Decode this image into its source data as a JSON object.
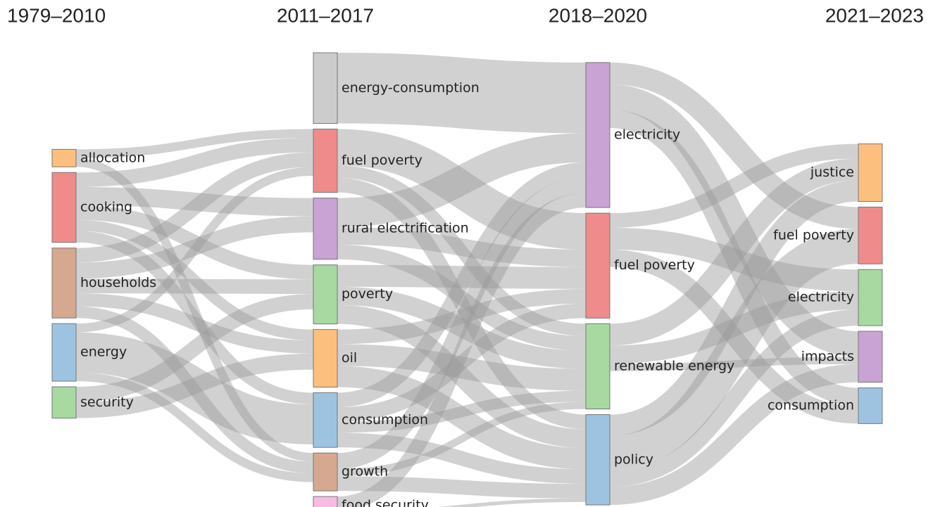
{
  "chart_data": {
    "type": "sankey",
    "columns": [
      "1979–2010",
      "2011–2017",
      "2018–2020",
      "2021–2023"
    ],
    "nodes": [
      {
        "name": "allocation",
        "column": 0,
        "color": "#fdbf7d"
      },
      {
        "name": "cooking",
        "column": 0,
        "color": "#f08b8b"
      },
      {
        "name": "households",
        "column": 0,
        "color": "#d6a890"
      },
      {
        "name": "energy",
        "column": 0,
        "color": "#9ec3e1"
      },
      {
        "name": "security",
        "column": 0,
        "color": "#a7d9a1"
      },
      {
        "name": "energy-consumption",
        "column": 1,
        "color": "#cccccc"
      },
      {
        "name": "fuel poverty",
        "column": 1,
        "color": "#f08b8b"
      },
      {
        "name": "rural electrification",
        "column": 1,
        "color": "#c9a3d4"
      },
      {
        "name": "poverty",
        "column": 1,
        "color": "#a7d9a1"
      },
      {
        "name": "oil",
        "column": 1,
        "color": "#fdbf7d"
      },
      {
        "name": "consumption",
        "column": 1,
        "color": "#9ec3e1"
      },
      {
        "name": "growth",
        "column": 1,
        "color": "#d6a890"
      },
      {
        "name": "food security",
        "column": 1,
        "color": "#f9bbdf"
      },
      {
        "name": "electricity",
        "column": 2,
        "color": "#c9a3d4"
      },
      {
        "name": "fuel poverty",
        "column": 2,
        "color": "#f08b8b"
      },
      {
        "name": "renewable energy",
        "column": 2,
        "color": "#a7d9a1"
      },
      {
        "name": "policy",
        "column": 2,
        "color": "#9ec3e1"
      },
      {
        "name": "justice",
        "column": 3,
        "color": "#fdbf7d"
      },
      {
        "name": "fuel poverty",
        "column": 3,
        "color": "#f08b8b"
      },
      {
        "name": "electricity",
        "column": 3,
        "color": "#a7d9a1"
      },
      {
        "name": "impacts",
        "column": 3,
        "color": "#c9a3d4"
      },
      {
        "name": "consumption",
        "column": 3,
        "color": "#9ec3e1"
      }
    ],
    "link_color": "#9a9a9a",
    "links": [
      {
        "source": 0,
        "target": 6,
        "value": 12
      },
      {
        "source": 0,
        "target": 11,
        "value": 12
      },
      {
        "source": 1,
        "target": 6,
        "value": 20
      },
      {
        "source": 1,
        "target": 7,
        "value": 25
      },
      {
        "source": 1,
        "target": 8,
        "value": 20
      },
      {
        "source": 1,
        "target": 9,
        "value": 15
      },
      {
        "source": 1,
        "target": 10,
        "value": 16
      },
      {
        "source": 2,
        "target": 6,
        "value": 20
      },
      {
        "source": 2,
        "target": 7,
        "value": 22
      },
      {
        "source": 2,
        "target": 8,
        "value": 20
      },
      {
        "source": 2,
        "target": 9,
        "value": 18
      },
      {
        "source": 2,
        "target": 11,
        "value": 16
      },
      {
        "source": 3,
        "target": 6,
        "value": 12
      },
      {
        "source": 3,
        "target": 10,
        "value": 55
      },
      {
        "source": 3,
        "target": 11,
        "value": 12
      },
      {
        "source": 4,
        "target": 8,
        "value": 21
      },
      {
        "source": 4,
        "target": 9,
        "value": 22
      },
      {
        "source": 5,
        "target": 13,
        "value": 97
      },
      {
        "source": 6,
        "target": 14,
        "value": 50
      },
      {
        "source": 6,
        "target": 15,
        "value": 17
      },
      {
        "source": 6,
        "target": 16,
        "value": 20
      },
      {
        "source": 7,
        "target": 13,
        "value": 40
      },
      {
        "source": 7,
        "target": 14,
        "value": 24
      },
      {
        "source": 7,
        "target": 15,
        "value": 20
      },
      {
        "source": 8,
        "target": 14,
        "value": 30
      },
      {
        "source": 8,
        "target": 15,
        "value": 25
      },
      {
        "source": 8,
        "target": 16,
        "value": 26
      },
      {
        "source": 9,
        "target": 14,
        "value": 20
      },
      {
        "source": 9,
        "target": 15,
        "value": 30
      },
      {
        "source": 9,
        "target": 16,
        "value": 29
      },
      {
        "source": 10,
        "target": 13,
        "value": 20
      },
      {
        "source": 10,
        "target": 14,
        "value": 20
      },
      {
        "source": 10,
        "target": 15,
        "value": 15
      },
      {
        "source": 10,
        "target": 16,
        "value": 20
      },
      {
        "source": 11,
        "target": 13,
        "value": 22
      },
      {
        "source": 11,
        "target": 15,
        "value": 10
      },
      {
        "source": 11,
        "target": 16,
        "value": 20
      },
      {
        "source": 12,
        "target": 13,
        "value": 20
      },
      {
        "source": 12,
        "target": 16,
        "value": 5
      },
      {
        "source": 13,
        "target": 18,
        "value": 30
      },
      {
        "source": 13,
        "target": 20,
        "value": 35
      },
      {
        "source": 13,
        "target": 21,
        "value": 25
      },
      {
        "source": 14,
        "target": 17,
        "value": 20
      },
      {
        "source": 14,
        "target": 19,
        "value": 30
      },
      {
        "source": 14,
        "target": 21,
        "value": 24
      },
      {
        "source": 15,
        "target": 17,
        "value": 30
      },
      {
        "source": 15,
        "target": 19,
        "value": 25
      },
      {
        "source": 15,
        "target": 20,
        "value": 10
      },
      {
        "source": 16,
        "target": 17,
        "value": 29
      },
      {
        "source": 16,
        "target": 18,
        "value": 48
      },
      {
        "source": 16,
        "target": 19,
        "value": 22
      },
      {
        "source": 16,
        "target": 20,
        "value": 25
      }
    ]
  }
}
